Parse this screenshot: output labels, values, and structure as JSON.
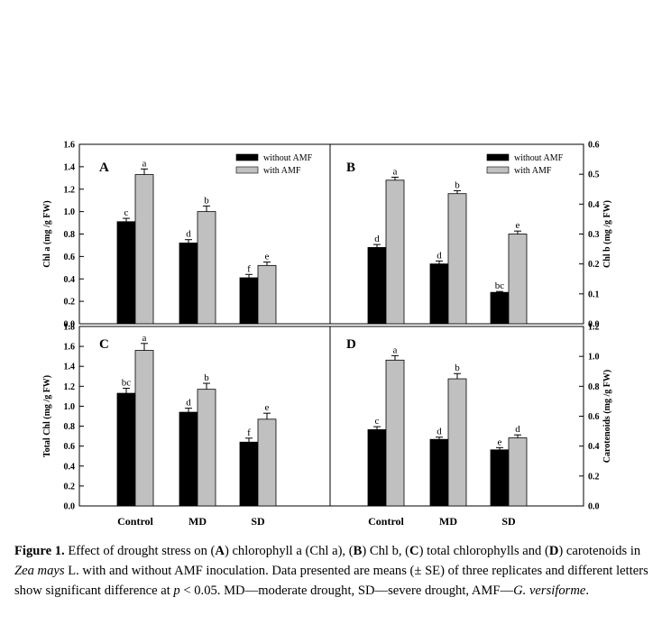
{
  "chart_data": [
    {
      "panel": "A",
      "type": "bar",
      "ylabel": "Chl a (mg /g FW)",
      "ylim": [
        0,
        1.6
      ],
      "yticks": [
        "0.0",
        "0.2",
        "0.4",
        "0.6",
        "0.8",
        "1.0",
        "1.2",
        "1.4",
        "1.6"
      ],
      "categories": [
        "Control",
        "MD",
        "SD"
      ],
      "legend": [
        "without AMF",
        "with AMF"
      ],
      "series": [
        {
          "name": "without AMF",
          "values": [
            0.91,
            0.72,
            0.41
          ],
          "errors": [
            0.03,
            0.03,
            0.03
          ],
          "letters": [
            "c",
            "d",
            "f"
          ]
        },
        {
          "name": "with AMF",
          "values": [
            1.33,
            1.0,
            0.52
          ],
          "errors": [
            0.05,
            0.05,
            0.03
          ],
          "letters": [
            "a",
            "b",
            "e"
          ]
        }
      ]
    },
    {
      "panel": "B",
      "type": "bar",
      "ylabel": "Chl b (mg /g FW)",
      "ylim": [
        0,
        0.6
      ],
      "yticks": [
        "0.0",
        "0.1",
        "0.2",
        "0.3",
        "0.4",
        "0.5",
        "0.6"
      ],
      "categories": [
        "Control",
        "MD",
        "SD"
      ],
      "legend": [
        "without AMF",
        "with AMF"
      ],
      "series": [
        {
          "name": "without AMF",
          "values": [
            0.255,
            0.2,
            0.105
          ],
          "errors": [
            0.01,
            0.01,
            0.003
          ],
          "letters": [
            "d",
            "d",
            "bc"
          ]
        },
        {
          "name": "with AMF",
          "values": [
            0.48,
            0.435,
            0.3
          ],
          "errors": [
            0.01,
            0.01,
            0.01
          ],
          "letters": [
            "a",
            "b",
            "e"
          ]
        }
      ]
    },
    {
      "panel": "C",
      "type": "bar",
      "ylabel": "Total Chl (mg /g FW)",
      "ylim": [
        0,
        1.8
      ],
      "yticks": [
        "0.0",
        "0.2",
        "0.4",
        "0.6",
        "0.8",
        "1.0",
        "1.2",
        "1.4",
        "1.6",
        "1.8"
      ],
      "categories": [
        "Control",
        "MD",
        "SD"
      ],
      "legend": [],
      "series": [
        {
          "name": "without AMF",
          "values": [
            1.13,
            0.94,
            0.64
          ],
          "errors": [
            0.05,
            0.04,
            0.04
          ],
          "letters": [
            "bc",
            "d",
            "f"
          ]
        },
        {
          "name": "with AMF",
          "values": [
            1.56,
            1.17,
            0.87
          ],
          "errors": [
            0.07,
            0.06,
            0.06
          ],
          "letters": [
            "a",
            "b",
            "e"
          ]
        }
      ]
    },
    {
      "panel": "D",
      "type": "bar",
      "ylabel": "Carotenoids (mg /g FW)",
      "ylim": [
        0,
        1.2
      ],
      "yticks": [
        "0.0",
        "0.2",
        "0.4",
        "0.6",
        "0.8",
        "1.0",
        "1.2"
      ],
      "categories": [
        "Control",
        "MD",
        "SD"
      ],
      "legend": [],
      "series": [
        {
          "name": "without AMF",
          "values": [
            0.51,
            0.445,
            0.375
          ],
          "errors": [
            0.02,
            0.015,
            0.015
          ],
          "letters": [
            "c",
            "d",
            "e"
          ]
        },
        {
          "name": "with AMF",
          "values": [
            0.975,
            0.85,
            0.455
          ],
          "errors": [
            0.03,
            0.035,
            0.02
          ],
          "letters": [
            "a",
            "b",
            "d"
          ]
        }
      ]
    }
  ],
  "colors": {
    "without_amf": "#000000",
    "with_amf": "#c0c0c0"
  },
  "caption": {
    "label": "Figure 1.",
    "p1": " Effect of drought stress on (",
    "A": "A",
    "p2": ") chlorophyll a (Chl a), (",
    "B": "B",
    "p3": ") Chl b, (",
    "C": "C",
    "p4": ") total chlorophylls and (",
    "D": "D",
    "p5": ") carotenoids in ",
    "species": "Zea mays",
    "p6": " L. with and without AMF inoculation. Data presented are means (± SE) of three replicates and different letters show significant difference at ",
    "pvar": "p",
    "p7": " < 0.05. MD—moderate drought, SD—severe drought, AMF—",
    "fungus": "G. versiforme",
    "p8": "."
  }
}
